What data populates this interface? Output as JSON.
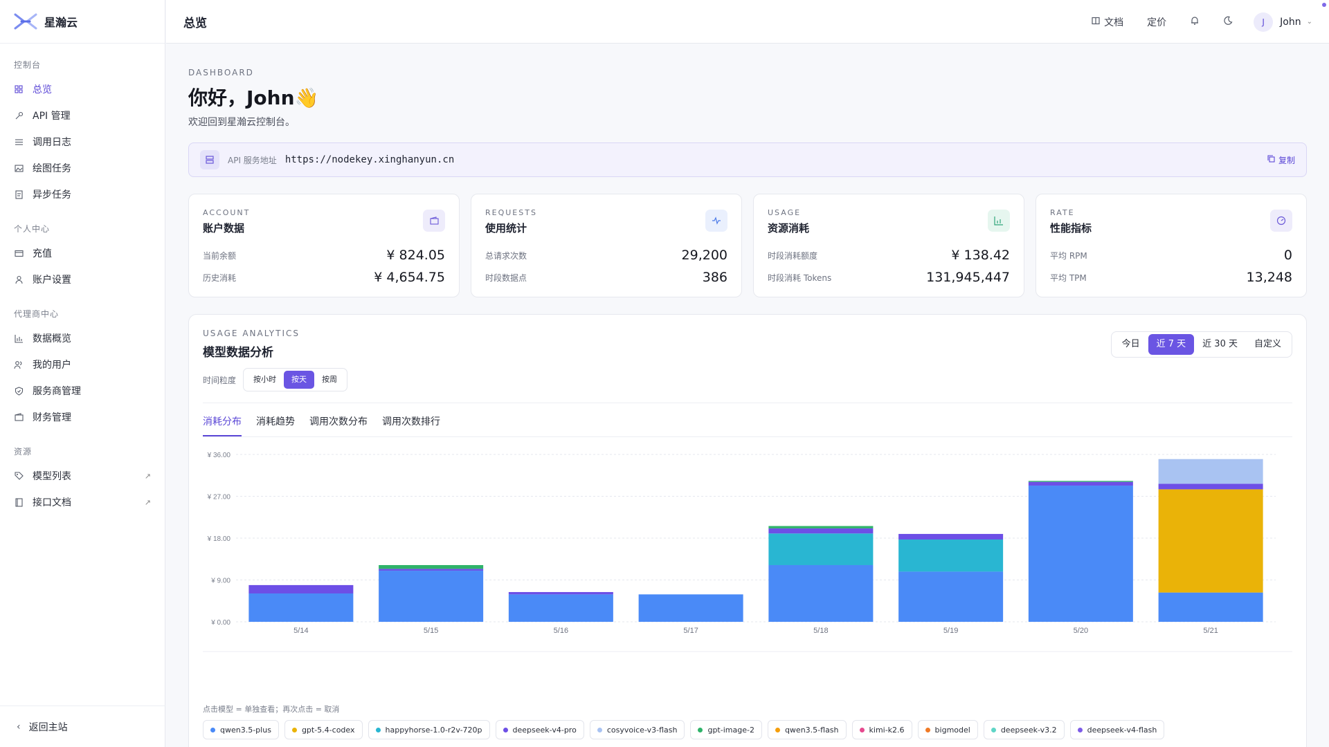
{
  "app": {
    "brand": "星瀚云"
  },
  "sidebar": {
    "groups": [
      {
        "title": "控制台",
        "items": [
          {
            "label": "总览",
            "icon": "grid-icon",
            "active": true
          },
          {
            "label": "API 管理",
            "icon": "key-icon"
          },
          {
            "label": "调用日志",
            "icon": "list-icon"
          },
          {
            "label": "绘图任务",
            "icon": "image-icon"
          },
          {
            "label": "异步任务",
            "icon": "task-icon"
          }
        ]
      },
      {
        "title": "个人中心",
        "items": [
          {
            "label": "充值",
            "icon": "card-icon"
          },
          {
            "label": "账户设置",
            "icon": "user-icon"
          }
        ]
      },
      {
        "title": "代理商中心",
        "items": [
          {
            "label": "数据概览",
            "icon": "chart-icon"
          },
          {
            "label": "我的用户",
            "icon": "users-icon"
          },
          {
            "label": "服务商管理",
            "icon": "shield-icon"
          },
          {
            "label": "财务管理",
            "icon": "wallet-icon"
          }
        ]
      },
      {
        "title": "资源",
        "items": [
          {
            "label": "模型列表",
            "icon": "tag-icon",
            "external": true
          },
          {
            "label": "接口文档",
            "icon": "book-icon",
            "external": true
          }
        ]
      }
    ],
    "back_home": "返回主站"
  },
  "header": {
    "title": "总览",
    "docs": "文档",
    "pricing": "定价",
    "user_initial": "J",
    "user_name": "John"
  },
  "main": {
    "dash_label": "DASHBOARD",
    "greeting": "你好，John👋",
    "welcome": "欢迎回到星瀚云控制台。",
    "api_label": "API 服务地址",
    "api_url": "https://nodekey.xinghanyun.cn",
    "copy": "复制"
  },
  "cards": [
    {
      "eyebrow": "ACCOUNT",
      "title": "账户数据",
      "icon": "wallet-icon",
      "badge_bg": "#eeecfb",
      "badge_fg": "#6a58d8",
      "rows": [
        {
          "k": "当前余额",
          "v": "¥ 824.05"
        },
        {
          "k": "历史消耗",
          "v": "¥ 4,654.75"
        }
      ]
    },
    {
      "eyebrow": "REQUESTS",
      "title": "使用统计",
      "icon": "pulse-icon",
      "badge_bg": "#eaf0fd",
      "badge_fg": "#4a79e8",
      "rows": [
        {
          "k": "总请求次数",
          "v": "29,200"
        },
        {
          "k": "时段数据点",
          "v": "386"
        }
      ]
    },
    {
      "eyebrow": "USAGE",
      "title": "资源消耗",
      "icon": "bar-chart-icon",
      "badge_bg": "#e6f6ef",
      "badge_fg": "#2fa57a",
      "rows": [
        {
          "k": "时段消耗额度",
          "v": "¥ 138.42"
        },
        {
          "k": "时段消耗 Tokens",
          "v": "131,945,447"
        }
      ]
    },
    {
      "eyebrow": "RATE",
      "title": "性能指标",
      "icon": "gauge-icon",
      "badge_bg": "#eeecfb",
      "badge_fg": "#6a58d8",
      "rows": [
        {
          "k": "平均 RPM",
          "v": "0"
        },
        {
          "k": "平均 TPM",
          "v": "13,248"
        }
      ]
    }
  ],
  "analytics": {
    "eyebrow": "USAGE ANALYTICS",
    "title": "模型数据分析",
    "ranges": [
      "今日",
      "近 7 天",
      "近 30 天",
      "自定义"
    ],
    "active_range": 1,
    "granularity_label": "时间粒度",
    "granularities": [
      "按小时",
      "按天",
      "按周"
    ],
    "active_granularity": 1,
    "tabs": [
      "消耗分布",
      "消耗趋势",
      "调用次数分布",
      "调用次数排行"
    ],
    "active_tab": 0,
    "hint": "点击模型 = 单独查看；再次点击 = 取消"
  },
  "chart_data": {
    "type": "bar",
    "stacked": true,
    "categories": [
      "5/14",
      "5/15",
      "5/16",
      "5/17",
      "5/18",
      "5/19",
      "5/20",
      "5/21"
    ],
    "yticks": [
      "¥ 0.00",
      "¥ 9.00",
      "¥ 18.00",
      "¥ 27.00",
      "¥ 36.00"
    ],
    "ylim": [
      0,
      36
    ],
    "grid": true,
    "series": [
      {
        "name": "qwen3.5-plus",
        "color": "#4a8af7",
        "values": [
          6.1,
          11.0,
          5.9,
          5.9,
          12.2,
          10.8,
          29.3,
          6.3
        ]
      },
      {
        "name": "gpt-5.4-codex",
        "color": "#eab308",
        "values": [
          0,
          0,
          0,
          0,
          0,
          0,
          0,
          22.2
        ]
      },
      {
        "name": "happyhorse-1.0-r2v-720p",
        "color": "#29b6d2",
        "values": [
          0,
          0,
          0,
          0,
          6.8,
          6.9,
          0,
          0
        ]
      },
      {
        "name": "deepseek-v4-pro",
        "color": "#6d4fe6",
        "values": [
          1.8,
          0.4,
          0.5,
          0,
          1.1,
          1.2,
          0.8,
          1.2
        ]
      },
      {
        "name": "cosyvoice-v3-flash",
        "color": "#a9c3f2",
        "values": [
          0,
          0,
          0,
          0,
          0,
          0,
          0,
          5.3
        ]
      },
      {
        "name": "gpt-image-2",
        "color": "#2fb36a",
        "values": [
          0,
          0.8,
          0,
          0,
          0.5,
          0,
          0.2,
          0
        ]
      },
      {
        "name": "qwen3.5-flash",
        "color": "#f59e0b",
        "values": [
          0,
          0,
          0,
          0,
          0,
          0,
          0,
          0
        ]
      },
      {
        "name": "kimi-k2.6",
        "color": "#e64a8f",
        "values": [
          0,
          0,
          0,
          0,
          0,
          0,
          0,
          0
        ]
      },
      {
        "name": "bigmodel",
        "color": "#f07a26",
        "values": [
          0,
          0,
          0,
          0,
          0,
          0,
          0,
          0
        ]
      },
      {
        "name": "deepseek-v3.2",
        "color": "#5fd5c6",
        "values": [
          0,
          0,
          0,
          0,
          0,
          0,
          0,
          0
        ]
      },
      {
        "name": "deepseek-v4-flash",
        "color": "#7d5ce8",
        "values": [
          0,
          0,
          0,
          0,
          0,
          0,
          0,
          0
        ]
      }
    ]
  }
}
